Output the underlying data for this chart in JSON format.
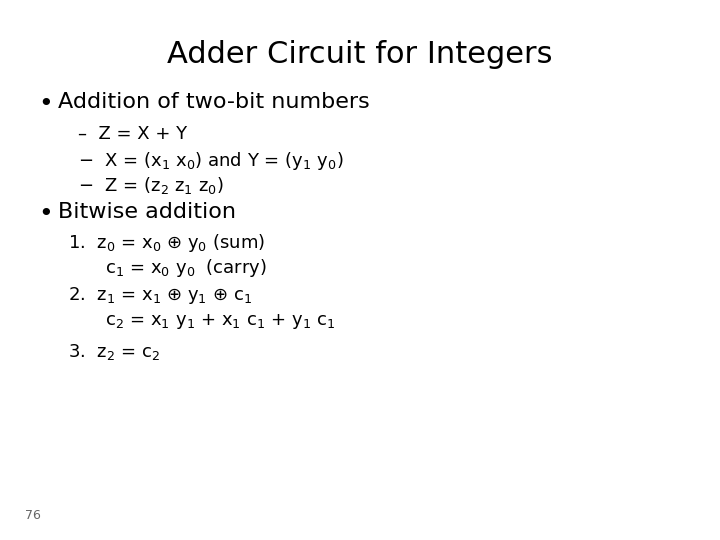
{
  "title": "Adder Circuit for Integers",
  "background_color": "#ffffff",
  "text_color": "#000000",
  "title_fontsize": 22,
  "bullet_fontsize": 16,
  "body_fontsize": 13,
  "page_number": "76",
  "bullet1": "Addition of two-bit numbers",
  "bullet2": "Bitwise addition",
  "dash1": "–  Z = X + Y",
  "page_num_fontsize": 9
}
